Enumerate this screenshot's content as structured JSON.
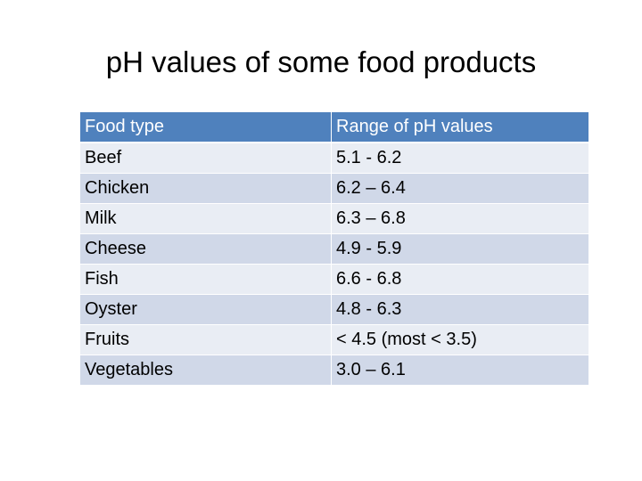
{
  "title": "pH values of some food products",
  "table": {
    "headers": [
      "Food type",
      "Range of pH values"
    ],
    "rows": [
      [
        "Beef",
        "5.1 - 6.2"
      ],
      [
        "Chicken",
        "6.2 – 6.4"
      ],
      [
        "Milk",
        "6.3 – 6.8"
      ],
      [
        "Cheese",
        "4.9 - 5.9"
      ],
      [
        "Fish",
        "6.6 - 6.8"
      ],
      [
        "Oyster",
        "4.8 - 6.3"
      ],
      [
        "Fruits",
        "< 4.5  (most < 3.5)"
      ],
      [
        "Vegetables",
        "3.0 – 6.1"
      ]
    ]
  },
  "colors": {
    "header_bg": "#4f81bd",
    "row_odd_bg": "#e9edf4",
    "row_even_bg": "#d0d8e8"
  }
}
